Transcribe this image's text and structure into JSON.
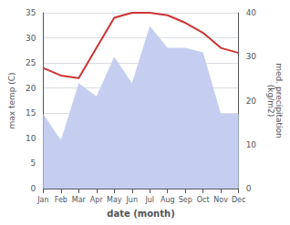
{
  "chart_data": {
    "type": "line",
    "categories": [
      "Jan",
      "Feb",
      "Mar",
      "Apr",
      "May",
      "Jun",
      "Jul",
      "Aug",
      "Sep",
      "Oct",
      "Nov",
      "Dec"
    ],
    "xlabel": "date (month)",
    "ylabel": "max temp (C)",
    "y2label": "med. precipitation\n(kg/m2)",
    "series": [
      {
        "type": "area",
        "axis": "y2",
        "color": "#c5cef0",
        "values": [
          17,
          11,
          24,
          21,
          30,
          24,
          37,
          32,
          32,
          31,
          17,
          17
        ]
      },
      {
        "type": "line",
        "color": "#cc3333",
        "values": [
          24,
          22.5,
          22,
          28,
          34,
          35,
          35,
          34.5,
          33,
          31,
          28,
          27
        ]
      }
    ],
    "ylim": [
      0,
      35
    ],
    "yticks": [
      0,
      5,
      10,
      15,
      20,
      25,
      30,
      35
    ],
    "y2lim": [
      0,
      40
    ],
    "y2ticks": [
      0,
      10,
      20,
      30,
      40
    ],
    "grid": true
  }
}
